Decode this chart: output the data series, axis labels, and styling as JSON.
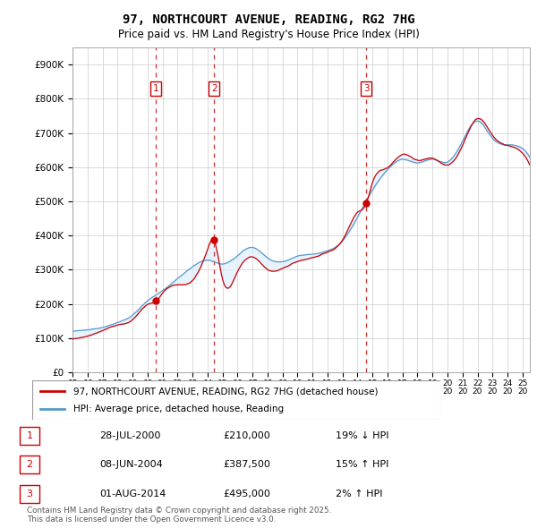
{
  "title": "97, NORTHCOURT AVENUE, READING, RG2 7HG",
  "subtitle": "Price paid vs. HM Land Registry's House Price Index (HPI)",
  "ylabel_ticks": [
    "£0",
    "£100K",
    "£200K",
    "£300K",
    "£400K",
    "£500K",
    "£600K",
    "£700K",
    "£800K",
    "£900K"
  ],
  "ytick_values": [
    0,
    100000,
    200000,
    300000,
    400000,
    500000,
    600000,
    700000,
    800000,
    900000
  ],
  "ylim": [
    0,
    950000
  ],
  "xlim_start": 1995.0,
  "xlim_end": 2025.5,
  "sale_dates": [
    2000.573,
    2004.436,
    2014.583
  ],
  "sale_prices": [
    210000,
    387500,
    495000
  ],
  "sale_labels": [
    "1",
    "2",
    "3"
  ],
  "legend_line1": "97, NORTHCOURT AVENUE, READING, RG2 7HG (detached house)",
  "legend_line2": "HPI: Average price, detached house, Reading",
  "table_rows": [
    {
      "label": "1",
      "date": "28-JUL-2000",
      "price": "£210,000",
      "pct": "19% ↓ HPI"
    },
    {
      "label": "2",
      "date": "08-JUN-2004",
      "price": "£387,500",
      "pct": "15% ↑ HPI"
    },
    {
      "label": "3",
      "date": "01-AUG-2014",
      "price": "£495,000",
      "pct": "2% ↑ HPI"
    }
  ],
  "footer": "Contains HM Land Registry data © Crown copyright and database right 2025.\nThis data is licensed under the Open Government Licence v3.0.",
  "color_red": "#cc0000",
  "color_blue": "#5599cc",
  "color_lightblue_bg": "#ddeeff",
  "background_color": "#ffffff",
  "hpi_points": {
    "x": [
      1995.0,
      1996.0,
      1997.0,
      1998.0,
      1999.0,
      2000.0,
      2001.0,
      2002.0,
      2003.0,
      2004.0,
      2005.0,
      2006.0,
      2007.0,
      2008.0,
      2009.0,
      2010.0,
      2011.0,
      2012.0,
      2013.0,
      2014.0,
      2015.0,
      2016.0,
      2017.0,
      2018.0,
      2019.0,
      2020.0,
      2021.0,
      2022.0,
      2023.0,
      2024.0,
      2025.0
    ],
    "y": [
      120000,
      125000,
      132000,
      145000,
      168000,
      210000,
      240000,
      275000,
      310000,
      330000,
      320000,
      345000,
      370000,
      340000,
      330000,
      345000,
      350000,
      360000,
      390000,
      460000,
      540000,
      600000,
      630000,
      620000,
      630000,
      620000,
      680000,
      740000,
      690000,
      670000,
      660000
    ]
  },
  "prop_points": {
    "x": [
      1995.0,
      1996.0,
      1997.0,
      1998.0,
      1999.0,
      2000.0,
      2000.573,
      2001.0,
      2002.0,
      2003.0,
      2004.0,
      2004.436,
      2005.0,
      2006.0,
      2007.0,
      2008.0,
      2009.0,
      2010.0,
      2011.0,
      2012.0,
      2013.0,
      2014.0,
      2014.583,
      2015.0,
      2016.0,
      2017.0,
      2018.0,
      2019.0,
      2020.0,
      2021.0,
      2022.0,
      2023.0,
      2024.0,
      2025.0
    ],
    "y": [
      97000,
      104000,
      120000,
      138000,
      155000,
      200000,
      210000,
      235000,
      260000,
      270000,
      360000,
      387500,
      275000,
      295000,
      340000,
      305000,
      310000,
      330000,
      340000,
      355000,
      390000,
      470000,
      495000,
      555000,
      600000,
      640000,
      625000,
      630000,
      610000,
      670000,
      750000,
      700000,
      670000,
      645000
    ]
  }
}
